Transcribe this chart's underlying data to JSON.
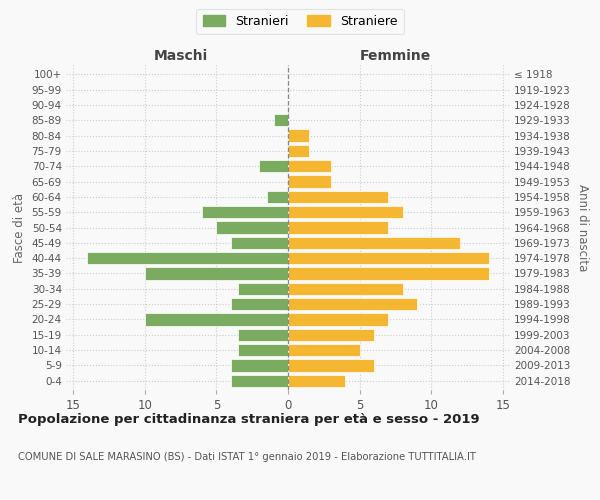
{
  "age_groups": [
    "0-4",
    "5-9",
    "10-14",
    "15-19",
    "20-24",
    "25-29",
    "30-34",
    "35-39",
    "40-44",
    "45-49",
    "50-54",
    "55-59",
    "60-64",
    "65-69",
    "70-74",
    "75-79",
    "80-84",
    "85-89",
    "90-94",
    "95-99",
    "100+"
  ],
  "birth_years": [
    "2014-2018",
    "2009-2013",
    "2004-2008",
    "1999-2003",
    "1994-1998",
    "1989-1993",
    "1984-1988",
    "1979-1983",
    "1974-1978",
    "1969-1973",
    "1964-1968",
    "1959-1963",
    "1954-1958",
    "1949-1953",
    "1944-1948",
    "1939-1943",
    "1934-1938",
    "1929-1933",
    "1924-1928",
    "1919-1923",
    "≤ 1918"
  ],
  "maschi": [
    4,
    4,
    3.5,
    3.5,
    10,
    4,
    3.5,
    10,
    14,
    4,
    5,
    6,
    1.5,
    0,
    2,
    0,
    0,
    1,
    0,
    0,
    0
  ],
  "femmine": [
    4,
    6,
    5,
    6,
    7,
    9,
    8,
    14,
    14,
    12,
    7,
    8,
    7,
    3,
    3,
    1.5,
    1.5,
    0,
    0,
    0,
    0
  ],
  "male_color": "#7aab60",
  "female_color": "#f5b731",
  "bar_edge_color": "#ffffff",
  "grid_color": "#cccccc",
  "title": "Popolazione per cittadinanza straniera per età e sesso - 2019",
  "subtitle": "COMUNE DI SALE MARASINO (BS) - Dati ISTAT 1° gennaio 2019 - Elaborazione TUTTITALIA.IT",
  "xlabel_left": "Maschi",
  "xlabel_right": "Femmine",
  "ylabel_left": "Fasce di età",
  "ylabel_right": "Anni di nascita",
  "legend_male": "Stranieri",
  "legend_female": "Straniere",
  "xlim": 15,
  "background_color": "#f9f9f9"
}
